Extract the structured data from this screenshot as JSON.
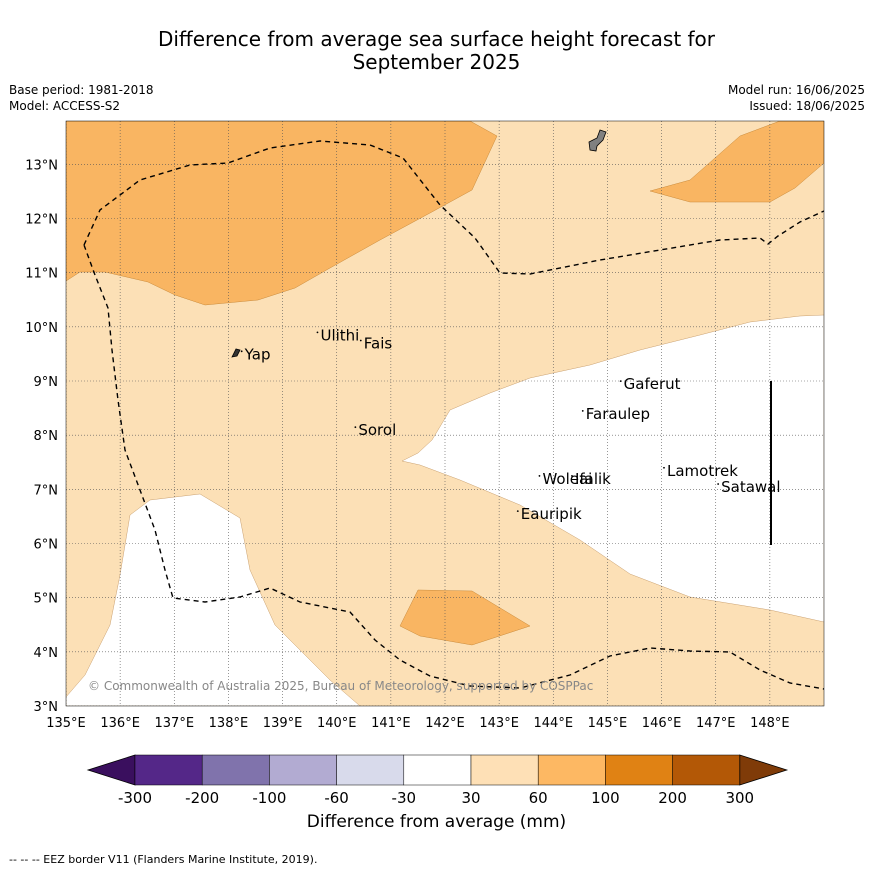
{
  "title_line1": "Difference from average sea surface height forecast for",
  "title_line2": "September 2025",
  "meta_left": [
    "Base period: 1981-2018",
    "Model: ACCESS-S2"
  ],
  "meta_right": [
    "Model run: 16/06/2025",
    "Issued: 18/06/2025"
  ],
  "map": {
    "lon_range": [
      135,
      149
    ],
    "lat_range": [
      3,
      13.8
    ],
    "lon_ticks": [
      "135°E",
      "136°E",
      "137°E",
      "138°E",
      "139°E",
      "140°E",
      "141°E",
      "142°E",
      "143°E",
      "144°E",
      "145°E",
      "146°E",
      "147°E",
      "148°E"
    ],
    "lat_ticks": [
      "3°N",
      "4°N",
      "5°N",
      "6°N",
      "7°N",
      "8°N",
      "9°N",
      "10°N",
      "11°N",
      "12°N",
      "13°N"
    ],
    "islands": [
      {
        "name": "Yap",
        "lon": 138.3,
        "lat": 9.4
      },
      {
        "name": "Ulithi",
        "lon": 139.7,
        "lat": 9.75
      },
      {
        "name": "Fais",
        "lon": 140.5,
        "lat": 9.6
      },
      {
        "name": "Sorol",
        "lon": 140.4,
        "lat": 8.0
      },
      {
        "name": "Gaferut",
        "lon": 145.3,
        "lat": 8.85
      },
      {
        "name": "Faraulep",
        "lon": 144.6,
        "lat": 8.3
      },
      {
        "name": "Woleai",
        "lon": 143.8,
        "lat": 7.1
      },
      {
        "name": "Ifalik",
        "lon": 144.4,
        "lat": 7.1
      },
      {
        "name": "Lamotrek",
        "lon": 146.1,
        "lat": 7.25
      },
      {
        "name": "Satawal",
        "lon": 147.1,
        "lat": 6.95
      },
      {
        "name": "Eauripik",
        "lon": 143.4,
        "lat": 6.45
      }
    ],
    "copyright": "© Commonwealth of Australia 2025, Bureau of Meteorology, supported by COSPPac",
    "colors": {
      "band_30_60": "#fce0b6",
      "band_60_100": "#f9b562",
      "eez_border": "#000000",
      "land": "#808080"
    }
  },
  "colorbar": {
    "colors": [
      "#3a0f5e",
      "#542788",
      "#8073ac",
      "#b2abd2",
      "#d8daeb",
      "#ffffff",
      "#fee0b6",
      "#fdb863",
      "#e08214",
      "#b35806",
      "#7f3b08"
    ],
    "tick_labels": [
      "-300",
      "-200",
      "-100",
      "-60",
      "-30",
      "30",
      "60",
      "100",
      "200",
      "300"
    ],
    "label": "Difference from average (mm)"
  },
  "footnote": "--  --  -- EEZ border V11 (Flanders Marine Institute, 2019)."
}
